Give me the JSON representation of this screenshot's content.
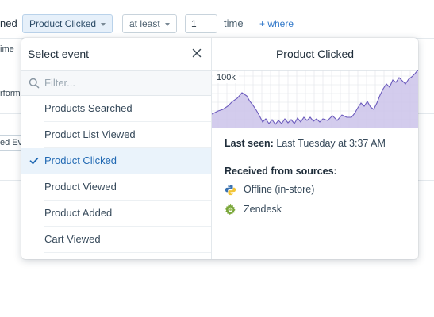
{
  "criteria": {
    "cut_label": "ned",
    "event_pill": "Product Clicked",
    "operator_pill": "at least",
    "count_value": "1",
    "unit_label": "time",
    "where_link": "+ where",
    "fragments": [
      "ime",
      "rform",
      "ed Eve"
    ]
  },
  "popover": {
    "title": "Select event",
    "filter_placeholder": "Filter...",
    "filter_value": "",
    "events": [
      {
        "label": "Products Searched",
        "selected": false
      },
      {
        "label": "Product List Viewed",
        "selected": false
      },
      {
        "label": "Product Clicked",
        "selected": true
      },
      {
        "label": "Product Viewed",
        "selected": false
      },
      {
        "label": "Product Added",
        "selected": false
      },
      {
        "label": "Cart Viewed",
        "selected": false
      }
    ]
  },
  "details": {
    "title": "Product Clicked",
    "chart_label": "100k",
    "sparkline_colors": {
      "fill": "#cbc3ea",
      "stroke": "#6c5bbd",
      "grid": "#dfe3e8"
    },
    "last_seen_label": "Last seen:",
    "last_seen_value": "Last Tuesday at 3:37 AM",
    "sources_title": "Received from sources:",
    "sources": [
      {
        "name": "Offline (in-store)",
        "icon": "python-icon"
      },
      {
        "name": "Zendesk",
        "icon": "gear-icon"
      }
    ]
  }
}
